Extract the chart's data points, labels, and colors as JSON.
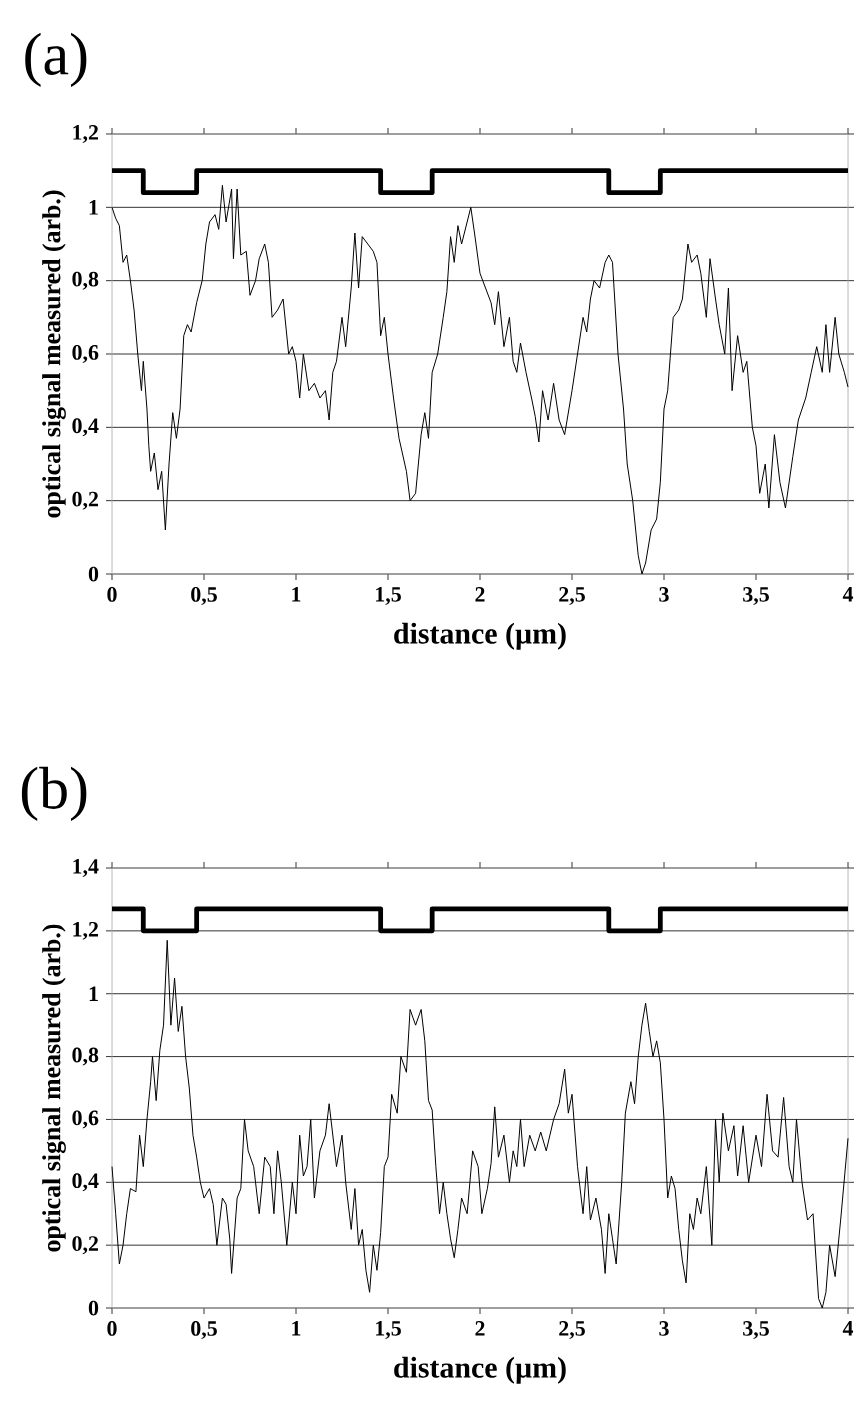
{
  "chart_data": [
    {
      "type": "line",
      "title": "(a)",
      "xlabel": "distance (µm)",
      "ylabel": "optical signal measured (arb.)",
      "xlim": [
        0,
        4
      ],
      "ylim": [
        0,
        1.2
      ],
      "xticks": [
        0,
        {
          "value": 0.5,
          "label": "0,5"
        },
        1,
        {
          "value": 1.5,
          "label": "1,5"
        },
        2,
        {
          "value": 2.5,
          "label": "2,5"
        },
        3,
        {
          "value": 3.5,
          "label": "3,5"
        },
        4
      ],
      "yticks": [
        0,
        {
          "value": 0.2,
          "label": "0,2"
        },
        {
          "value": 0.4,
          "label": "0,4"
        },
        {
          "value": 0.6,
          "label": "0,6"
        },
        {
          "value": 0.8,
          "label": "0,8"
        },
        1,
        {
          "value": 1.2,
          "label": "1,2"
        }
      ],
      "grid": "y",
      "series": [
        {
          "type": "step",
          "color": "#000000",
          "x": [
            0,
            0.17,
            0.46,
            1.46,
            1.74,
            2.7,
            2.98,
            4
          ],
          "values": [
            1.1,
            1.04,
            1.1,
            1.04,
            1.1,
            1.04,
            1.1,
            1.1
          ]
        },
        {
          "color": "#000000",
          "x": [
            0,
            0.02,
            0.04,
            0.06,
            0.08,
            0.1,
            0.12,
            0.14,
            0.16,
            0.17,
            0.19,
            0.2,
            0.21,
            0.23,
            0.25,
            0.27,
            0.29,
            0.31,
            0.33,
            0.35,
            0.37,
            0.39,
            0.41,
            0.43,
            0.46,
            0.49,
            0.51,
            0.53,
            0.56,
            0.58,
            0.6,
            0.62,
            0.65,
            0.66,
            0.68,
            0.7,
            0.73,
            0.75,
            0.78,
            0.8,
            0.83,
            0.85,
            0.87,
            0.9,
            0.93,
            0.96,
            0.98,
            1.0,
            1.02,
            1.04,
            1.07,
            1.1,
            1.13,
            1.16,
            1.18,
            1.2,
            1.22,
            1.25,
            1.27,
            1.3,
            1.32,
            1.34,
            1.36,
            1.39,
            1.42,
            1.44,
            1.46,
            1.48,
            1.5,
            1.53,
            1.56,
            1.6,
            1.62,
            1.65,
            1.68,
            1.7,
            1.72,
            1.74,
            1.77,
            1.8,
            1.82,
            1.84,
            1.86,
            1.88,
            1.9,
            1.93,
            1.95,
            1.97,
            2.0,
            2.03,
            2.06,
            2.08,
            2.1,
            2.13,
            2.16,
            2.18,
            2.2,
            2.22,
            2.25,
            2.28,
            2.3,
            2.32,
            2.34,
            2.37,
            2.4,
            2.43,
            2.46,
            2.5,
            2.53,
            2.56,
            2.58,
            2.6,
            2.62,
            2.65,
            2.68,
            2.7,
            2.72,
            2.75,
            2.78,
            2.8,
            2.83,
            2.86,
            2.88,
            2.9,
            2.93,
            2.96,
            2.98,
            3.0,
            3.02,
            3.05,
            3.08,
            3.1,
            3.13,
            3.15,
            3.18,
            3.2,
            3.23,
            3.25,
            3.28,
            3.3,
            3.33,
            3.35,
            3.37,
            3.4,
            3.43,
            3.45,
            3.48,
            3.5,
            3.52,
            3.55,
            3.57,
            3.6,
            3.63,
            3.66,
            3.7,
            3.73,
            3.77,
            3.8,
            3.83,
            3.86,
            3.88,
            3.9,
            3.93,
            3.95,
            3.98,
            4.0
          ],
          "values": [
            1.0,
            0.97,
            0.95,
            0.85,
            0.87,
            0.8,
            0.72,
            0.6,
            0.5,
            0.58,
            0.45,
            0.35,
            0.28,
            0.33,
            0.23,
            0.28,
            0.12,
            0.3,
            0.44,
            0.37,
            0.45,
            0.65,
            0.68,
            0.66,
            0.74,
            0.8,
            0.9,
            0.96,
            0.98,
            0.94,
            1.06,
            0.96,
            1.05,
            0.86,
            1.05,
            0.87,
            0.88,
            0.76,
            0.8,
            0.86,
            0.9,
            0.85,
            0.7,
            0.72,
            0.75,
            0.6,
            0.62,
            0.58,
            0.48,
            0.6,
            0.5,
            0.52,
            0.48,
            0.5,
            0.42,
            0.55,
            0.58,
            0.7,
            0.62,
            0.78,
            0.93,
            0.78,
            0.92,
            0.9,
            0.88,
            0.85,
            0.65,
            0.7,
            0.6,
            0.48,
            0.37,
            0.28,
            0.2,
            0.22,
            0.38,
            0.44,
            0.37,
            0.55,
            0.6,
            0.7,
            0.77,
            0.92,
            0.85,
            0.95,
            0.9,
            0.96,
            1.0,
            0.93,
            0.82,
            0.78,
            0.74,
            0.68,
            0.77,
            0.62,
            0.7,
            0.58,
            0.55,
            0.63,
            0.55,
            0.48,
            0.43,
            0.36,
            0.5,
            0.42,
            0.52,
            0.42,
            0.38,
            0.5,
            0.6,
            0.7,
            0.66,
            0.75,
            0.8,
            0.78,
            0.85,
            0.87,
            0.85,
            0.6,
            0.45,
            0.3,
            0.2,
            0.05,
            0.0,
            0.03,
            0.12,
            0.15,
            0.25,
            0.45,
            0.5,
            0.7,
            0.72,
            0.75,
            0.9,
            0.85,
            0.87,
            0.82,
            0.7,
            0.86,
            0.75,
            0.68,
            0.6,
            0.78,
            0.5,
            0.65,
            0.55,
            0.58,
            0.4,
            0.35,
            0.22,
            0.3,
            0.18,
            0.38,
            0.25,
            0.18,
            0.32,
            0.42,
            0.48,
            0.55,
            0.62,
            0.55,
            0.68,
            0.55,
            0.7,
            0.6,
            0.55,
            0.51
          ]
        }
      ]
    },
    {
      "type": "line",
      "title": "(b)",
      "xlabel": "distance (µm)",
      "ylabel": "optical signal measured (arb.)",
      "xlim": [
        0,
        4
      ],
      "ylim": [
        0,
        1.4
      ],
      "xticks": [
        0,
        {
          "value": 0.5,
          "label": "0,5"
        },
        1,
        {
          "value": 1.5,
          "label": "1,5"
        },
        2,
        {
          "value": 2.5,
          "label": "2,5"
        },
        3,
        {
          "value": 3.5,
          "label": "3,5"
        },
        4
      ],
      "yticks": [
        0,
        {
          "value": 0.2,
          "label": "0,2"
        },
        {
          "value": 0.4,
          "label": "0,4"
        },
        {
          "value": 0.6,
          "label": "0,6"
        },
        {
          "value": 0.8,
          "label": "0,8"
        },
        1,
        {
          "value": 1.2,
          "label": "1,2"
        },
        {
          "value": 1.4,
          "label": "1,4"
        }
      ],
      "grid": "y",
      "series": [
        {
          "type": "step",
          "color": "#000000",
          "x": [
            0,
            0.17,
            0.46,
            1.46,
            1.74,
            2.7,
            2.98,
            4
          ],
          "values": [
            1.27,
            1.2,
            1.27,
            1.2,
            1.27,
            1.2,
            1.27,
            1.27
          ]
        },
        {
          "color": "#000000",
          "x": [
            0,
            0.02,
            0.04,
            0.06,
            0.08,
            0.1,
            0.13,
            0.15,
            0.17,
            0.19,
            0.21,
            0.22,
            0.24,
            0.26,
            0.28,
            0.3,
            0.32,
            0.34,
            0.36,
            0.38,
            0.4,
            0.42,
            0.44,
            0.46,
            0.48,
            0.5,
            0.53,
            0.55,
            0.57,
            0.6,
            0.62,
            0.64,
            0.65,
            0.68,
            0.7,
            0.72,
            0.74,
            0.77,
            0.8,
            0.83,
            0.86,
            0.88,
            0.9,
            0.92,
            0.95,
            0.98,
            1.0,
            1.02,
            1.04,
            1.06,
            1.08,
            1.1,
            1.13,
            1.16,
            1.18,
            1.2,
            1.22,
            1.25,
            1.27,
            1.3,
            1.32,
            1.34,
            1.36,
            1.38,
            1.4,
            1.42,
            1.44,
            1.46,
            1.48,
            1.5,
            1.52,
            1.55,
            1.57,
            1.6,
            1.62,
            1.65,
            1.68,
            1.7,
            1.72,
            1.74,
            1.76,
            1.78,
            1.8,
            1.82,
            1.84,
            1.86,
            1.88,
            1.9,
            1.93,
            1.96,
            1.99,
            2.01,
            2.04,
            2.06,
            2.08,
            2.1,
            2.13,
            2.16,
            2.18,
            2.2,
            2.22,
            2.24,
            2.27,
            2.3,
            2.33,
            2.36,
            2.4,
            2.43,
            2.46,
            2.48,
            2.5,
            2.53,
            2.56,
            2.58,
            2.6,
            2.63,
            2.66,
            2.68,
            2.7,
            2.72,
            2.74,
            2.77,
            2.79,
            2.82,
            2.84,
            2.86,
            2.88,
            2.9,
            2.92,
            2.94,
            2.96,
            2.98,
            3.0,
            3.02,
            3.04,
            3.06,
            3.08,
            3.1,
            3.12,
            3.14,
            3.16,
            3.18,
            3.2,
            3.23,
            3.26,
            3.28,
            3.3,
            3.32,
            3.35,
            3.38,
            3.4,
            3.43,
            3.46,
            3.5,
            3.53,
            3.56,
            3.59,
            3.62,
            3.65,
            3.68,
            3.7,
            3.72,
            3.75,
            3.78,
            3.81,
            3.84,
            3.86,
            3.88,
            3.9,
            3.93,
            3.96,
            4.0
          ],
          "values": [
            0.45,
            0.3,
            0.14,
            0.2,
            0.3,
            0.38,
            0.37,
            0.55,
            0.45,
            0.6,
            0.72,
            0.8,
            0.66,
            0.82,
            0.9,
            1.17,
            0.9,
            1.05,
            0.88,
            0.96,
            0.8,
            0.7,
            0.55,
            0.48,
            0.4,
            0.35,
            0.38,
            0.33,
            0.2,
            0.35,
            0.33,
            0.22,
            0.11,
            0.35,
            0.38,
            0.6,
            0.5,
            0.45,
            0.3,
            0.48,
            0.45,
            0.3,
            0.5,
            0.4,
            0.2,
            0.4,
            0.3,
            0.55,
            0.42,
            0.45,
            0.6,
            0.35,
            0.5,
            0.55,
            0.65,
            0.55,
            0.45,
            0.55,
            0.4,
            0.25,
            0.38,
            0.2,
            0.25,
            0.12,
            0.05,
            0.2,
            0.12,
            0.24,
            0.45,
            0.48,
            0.68,
            0.62,
            0.8,
            0.75,
            0.95,
            0.9,
            0.95,
            0.85,
            0.66,
            0.63,
            0.45,
            0.3,
            0.4,
            0.3,
            0.22,
            0.16,
            0.25,
            0.35,
            0.3,
            0.5,
            0.45,
            0.3,
            0.38,
            0.46,
            0.64,
            0.48,
            0.55,
            0.4,
            0.5,
            0.45,
            0.6,
            0.45,
            0.55,
            0.5,
            0.56,
            0.5,
            0.6,
            0.65,
            0.76,
            0.62,
            0.68,
            0.45,
            0.3,
            0.45,
            0.28,
            0.35,
            0.25,
            0.11,
            0.3,
            0.22,
            0.14,
            0.4,
            0.62,
            0.72,
            0.65,
            0.8,
            0.9,
            0.97,
            0.88,
            0.8,
            0.85,
            0.78,
            0.6,
            0.35,
            0.42,
            0.38,
            0.25,
            0.15,
            0.08,
            0.3,
            0.25,
            0.35,
            0.3,
            0.45,
            0.2,
            0.6,
            0.4,
            0.62,
            0.5,
            0.58,
            0.42,
            0.58,
            0.4,
            0.55,
            0.45,
            0.68,
            0.5,
            0.48,
            0.67,
            0.45,
            0.4,
            0.6,
            0.4,
            0.28,
            0.3,
            0.03,
            0.0,
            0.05,
            0.2,
            0.1,
            0.28,
            0.54
          ]
        }
      ]
    }
  ]
}
